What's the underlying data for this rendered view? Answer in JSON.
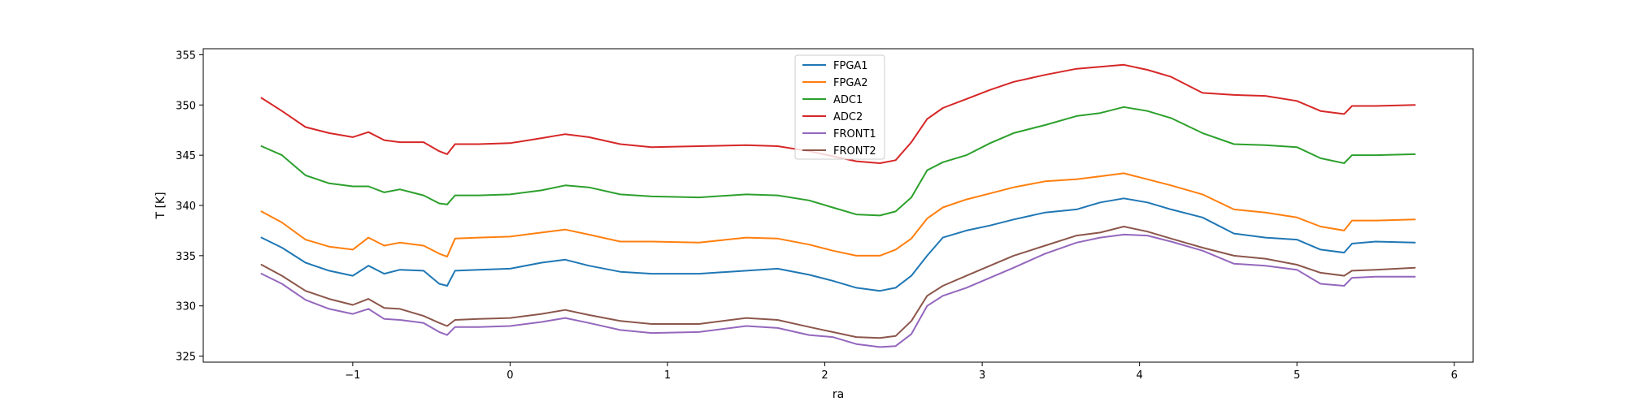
{
  "chart_data": {
    "type": "line",
    "xlabel": "ra",
    "ylabel": "T [K]",
    "xlim": [
      -1.95,
      6.12
    ],
    "ylim": [
      324.4,
      355.6
    ],
    "xticks": [
      -1,
      0,
      1,
      2,
      3,
      4,
      5,
      6
    ],
    "xtick_labels": [
      "−1",
      "0",
      "1",
      "2",
      "3",
      "4",
      "5",
      "6"
    ],
    "yticks": [
      325,
      330,
      335,
      340,
      345,
      350,
      355
    ],
    "ytick_labels": [
      "325",
      "330",
      "335",
      "340",
      "345",
      "350",
      "355"
    ],
    "grid": false,
    "legend_position": "upper-center",
    "x": [
      -1.58,
      -1.45,
      -1.3,
      -1.15,
      -1.0,
      -0.9,
      -0.8,
      -0.7,
      -0.55,
      -0.45,
      -0.4,
      -0.35,
      -0.2,
      0.0,
      0.2,
      0.35,
      0.5,
      0.7,
      0.9,
      1.2,
      1.5,
      1.7,
      1.9,
      2.05,
      2.2,
      2.35,
      2.45,
      2.55,
      2.65,
      2.75,
      2.9,
      3.05,
      3.2,
      3.4,
      3.6,
      3.75,
      3.9,
      4.05,
      4.2,
      4.4,
      4.6,
      4.8,
      5.0,
      5.15,
      5.3,
      5.35,
      5.5,
      5.75
    ],
    "series": [
      {
        "name": "FPGA1",
        "color": "#1f77b4",
        "values": [
          336.8,
          335.8,
          334.3,
          333.5,
          333.0,
          334.0,
          333.2,
          333.6,
          333.5,
          332.2,
          332.0,
          333.5,
          333.6,
          333.7,
          334.3,
          334.6,
          334.0,
          333.4,
          333.2,
          333.2,
          333.5,
          333.7,
          333.1,
          332.5,
          331.8,
          331.5,
          331.8,
          333.0,
          335.0,
          336.8,
          337.5,
          338.0,
          338.6,
          339.3,
          339.6,
          340.3,
          340.7,
          340.3,
          339.6,
          338.8,
          337.2,
          336.8,
          336.6,
          335.6,
          335.3,
          336.2,
          336.4,
          336.3
        ]
      },
      {
        "name": "FPGA2",
        "color": "#ff7f0e",
        "values": [
          339.4,
          338.3,
          336.6,
          335.9,
          335.6,
          336.8,
          336.0,
          336.3,
          336.0,
          335.2,
          334.9,
          336.7,
          336.8,
          336.9,
          337.3,
          337.6,
          337.1,
          336.4,
          336.4,
          336.3,
          336.8,
          336.7,
          336.1,
          335.5,
          335.0,
          335.0,
          335.6,
          336.7,
          338.7,
          339.8,
          340.6,
          341.2,
          341.8,
          342.4,
          342.6,
          342.9,
          343.2,
          342.6,
          342.0,
          341.1,
          339.6,
          339.3,
          338.8,
          337.9,
          337.5,
          338.5,
          338.5,
          338.6
        ]
      },
      {
        "name": "ADC1",
        "color": "#2ca02c",
        "values": [
          345.9,
          345.0,
          343.0,
          342.2,
          341.9,
          341.9,
          341.3,
          341.6,
          341.0,
          340.2,
          340.1,
          341.0,
          341.0,
          341.1,
          341.5,
          342.0,
          341.8,
          341.1,
          340.9,
          340.8,
          341.1,
          341.0,
          340.5,
          339.8,
          339.1,
          339.0,
          339.4,
          340.8,
          343.5,
          344.3,
          345.0,
          346.2,
          347.2,
          348.0,
          348.9,
          349.2,
          349.8,
          349.4,
          348.7,
          347.2,
          346.1,
          346.0,
          345.8,
          344.7,
          344.2,
          345.0,
          345.0,
          345.1
        ]
      },
      {
        "name": "ADC2",
        "color": "#d62728",
        "values": [
          350.7,
          349.4,
          347.8,
          347.2,
          346.8,
          347.3,
          346.5,
          346.3,
          346.3,
          345.4,
          345.1,
          346.1,
          346.1,
          346.2,
          346.7,
          347.1,
          346.8,
          346.1,
          345.8,
          345.9,
          346.0,
          345.9,
          345.4,
          344.9,
          344.4,
          344.2,
          344.5,
          346.3,
          348.6,
          349.7,
          350.6,
          351.5,
          352.3,
          353.0,
          353.6,
          353.8,
          354.0,
          353.5,
          352.8,
          351.2,
          351.0,
          350.9,
          350.4,
          349.4,
          349.1,
          349.9,
          349.9,
          350.0
        ]
      },
      {
        "name": "FRONT1",
        "color": "#9467bd",
        "values": [
          333.2,
          332.2,
          330.6,
          329.7,
          329.2,
          329.7,
          328.7,
          328.6,
          328.3,
          327.4,
          327.1,
          327.9,
          327.9,
          328.0,
          328.4,
          328.8,
          328.3,
          327.6,
          327.3,
          327.4,
          328.0,
          327.8,
          327.1,
          326.9,
          326.2,
          325.9,
          326.0,
          327.2,
          330.0,
          331.0,
          331.8,
          332.8,
          333.8,
          335.2,
          336.3,
          336.8,
          337.1,
          337.0,
          336.4,
          335.5,
          334.2,
          334.0,
          333.6,
          332.2,
          332.0,
          332.8,
          332.9,
          332.9
        ]
      },
      {
        "name": "FRONT2",
        "color": "#8c564b",
        "values": [
          334.1,
          333.0,
          331.5,
          330.7,
          330.1,
          330.7,
          329.8,
          329.7,
          329.0,
          328.3,
          328.0,
          328.6,
          328.7,
          328.8,
          329.2,
          329.6,
          329.1,
          328.5,
          328.2,
          328.2,
          328.8,
          328.6,
          327.9,
          327.4,
          326.9,
          326.8,
          327.0,
          328.5,
          331.0,
          332.0,
          333.0,
          334.0,
          335.0,
          336.0,
          337.0,
          337.3,
          337.9,
          337.4,
          336.7,
          335.8,
          335.0,
          334.7,
          334.1,
          333.3,
          333.0,
          333.5,
          333.6,
          333.8
        ]
      }
    ]
  }
}
